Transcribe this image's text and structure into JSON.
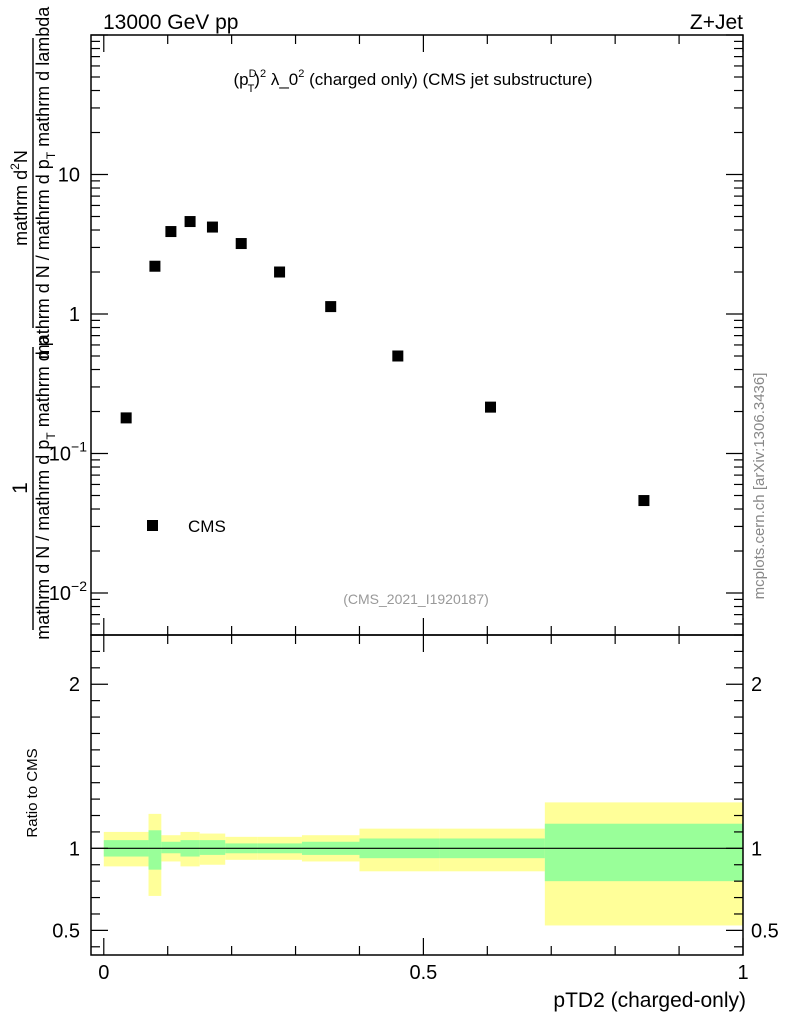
{
  "header": {
    "energy_label": "13000 GeV pp",
    "process_label": "Z+Jet"
  },
  "side_label": "mcplots.cern.ch [arXiv:1306.3436]",
  "chart_data": [
    {
      "type": "scatter",
      "panel": "main",
      "title_parts": {
        "open": "(p",
        "sup": "D",
        "sub": "T",
        "close": ")",
        "exp": "2",
        "rest": " λ_0",
        "exp2": "2",
        "tail": " (charged only) (CMS jet substructure)"
      },
      "analysis_id": "(CMS_2021_I1920187)",
      "ylabel": {
        "one": "1",
        "den_a": "mathrm d N / mathrm d p",
        "den_sub": "T",
        "den_b": " mathrm d p",
        "num_a": "mathrm d",
        "num_sup": "2",
        "num_b": "N",
        "tail_sub": "T",
        "tail_b": " mathrm d lambda"
      },
      "yscale": "log",
      "ylim": [
        0.005,
        100
      ],
      "xlim": [
        -0.02,
        1.0
      ],
      "y_ticks": [
        {
          "value": 10,
          "label": "10"
        },
        {
          "value": 1,
          "label": "1"
        },
        {
          "value": 0.1,
          "base": "10",
          "exp": "−1"
        },
        {
          "value": 0.01,
          "base": "10",
          "exp": "−2"
        }
      ],
      "legend": {
        "entries": [
          "CMS"
        ],
        "placement": "bottom-left"
      },
      "series": [
        {
          "name": "CMS",
          "marker": "square",
          "x": [
            0.035,
            0.08,
            0.105,
            0.135,
            0.17,
            0.215,
            0.275,
            0.355,
            0.46,
            0.605,
            0.845
          ],
          "y": [
            0.18,
            2.2,
            3.9,
            4.6,
            4.2,
            3.2,
            2.0,
            1.13,
            0.5,
            0.215,
            0.046
          ]
        }
      ]
    },
    {
      "type": "area",
      "panel": "ratio",
      "ylabel": "Ratio to CMS",
      "xlabel": "pTD2 (charged-only)",
      "xlim": [
        -0.02,
        1.0
      ],
      "ylim": [
        0.35,
        2.3
      ],
      "x_ticks": [
        {
          "value": 0,
          "label": "0"
        },
        {
          "value": 0.5,
          "label": "0.5"
        },
        {
          "value": 1,
          "label": "1"
        }
      ],
      "y_ticks": [
        {
          "value": 2,
          "label": "2"
        },
        {
          "value": 1,
          "label": "1"
        },
        {
          "value": 0.5,
          "label": "0.5"
        }
      ],
      "reference_line": 1,
      "bands": [
        {
          "x0": 0.0,
          "x1": 0.07,
          "inner": [
            0.95,
            1.05
          ],
          "outer": [
            0.89,
            1.1
          ]
        },
        {
          "x0": 0.07,
          "x1": 0.09,
          "inner": [
            0.87,
            1.11
          ],
          "outer": [
            0.71,
            1.21
          ]
        },
        {
          "x0": 0.09,
          "x1": 0.12,
          "inner": [
            0.97,
            1.04
          ],
          "outer": [
            0.92,
            1.08
          ]
        },
        {
          "x0": 0.12,
          "x1": 0.15,
          "inner": [
            0.95,
            1.05
          ],
          "outer": [
            0.89,
            1.1
          ]
        },
        {
          "x0": 0.15,
          "x1": 0.19,
          "inner": [
            0.96,
            1.05
          ],
          "outer": [
            0.9,
            1.09
          ]
        },
        {
          "x0": 0.19,
          "x1": 0.24,
          "inner": [
            0.97,
            1.03
          ],
          "outer": [
            0.93,
            1.07
          ]
        },
        {
          "x0": 0.24,
          "x1": 0.31,
          "inner": [
            0.97,
            1.03
          ],
          "outer": [
            0.93,
            1.07
          ]
        },
        {
          "x0": 0.31,
          "x1": 0.4,
          "inner": [
            0.96,
            1.04
          ],
          "outer": [
            0.92,
            1.08
          ]
        },
        {
          "x0": 0.4,
          "x1": 0.525,
          "inner": [
            0.94,
            1.06
          ],
          "outer": [
            0.86,
            1.12
          ]
        },
        {
          "x0": 0.525,
          "x1": 0.69,
          "inner": [
            0.94,
            1.06
          ],
          "outer": [
            0.86,
            1.12
          ]
        },
        {
          "x0": 0.69,
          "x1": 1.0,
          "inner": [
            0.8,
            1.15
          ],
          "outer": [
            0.53,
            1.28
          ]
        }
      ]
    }
  ],
  "colors": {
    "outer_band": "#ffff99",
    "inner_band": "#99ff99",
    "marker": "#000000",
    "axis": "#000000",
    "muted_text": "#999999",
    "side_text": "#888888"
  }
}
